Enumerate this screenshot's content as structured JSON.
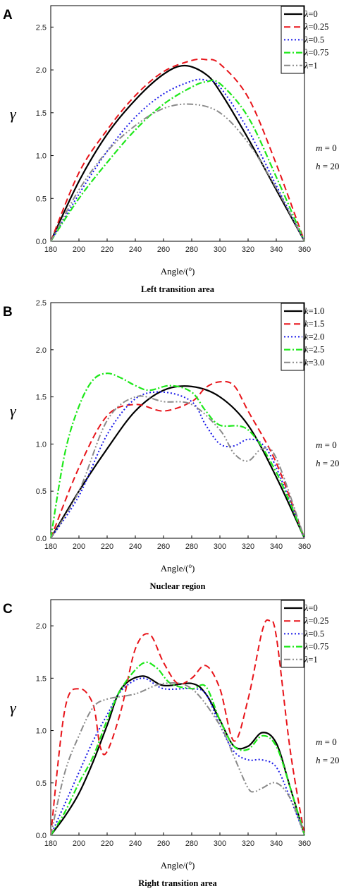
{
  "chart_data": [
    {
      "type": "line",
      "panel_label": "A",
      "caption": "Left transition area",
      "ylabel": "γ",
      "xlabel": "Angle/(o)",
      "xlim": [
        180,
        360
      ],
      "ylim": [
        0,
        2.75
      ],
      "xticks": [
        180,
        200,
        220,
        240,
        260,
        280,
        300,
        320,
        340,
        360
      ],
      "yticks": [
        "0.0",
        "0.5",
        "1.0",
        "1.5",
        "2.0",
        "2.5"
      ],
      "annotations": [
        {
          "var": "m",
          "val": "0"
        },
        {
          "var": "h",
          "val": "20"
        }
      ],
      "legend_prefix": "λ",
      "legend_position": "top-right",
      "series": [
        {
          "name": "=0",
          "color": "#000000",
          "dash": "",
          "width": 2.2,
          "x": [
            180,
            200,
            220,
            240,
            260,
            275,
            290,
            300,
            320,
            340,
            360
          ],
          "y": [
            0,
            0.7,
            1.25,
            1.65,
            1.95,
            2.05,
            1.95,
            1.75,
            1.2,
            0.6,
            0
          ]
        },
        {
          "name": "=0.25",
          "color": "#e8141a",
          "dash": "9,5",
          "width": 2,
          "x": [
            180,
            200,
            220,
            240,
            260,
            280,
            290,
            300,
            320,
            340,
            360
          ],
          "y": [
            0,
            0.8,
            1.3,
            1.7,
            1.98,
            2.11,
            2.12,
            2.07,
            1.68,
            0.9,
            0
          ]
        },
        {
          "name": "=0.5",
          "color": "#1a1ae8",
          "dash": "2,3",
          "width": 2,
          "x": [
            180,
            200,
            220,
            240,
            260,
            280,
            290,
            300,
            320,
            340,
            360
          ],
          "y": [
            0,
            0.55,
            1.05,
            1.45,
            1.72,
            1.87,
            1.88,
            1.8,
            1.3,
            0.65,
            0
          ]
        },
        {
          "name": "=0.75",
          "color": "#1ee81a",
          "dash": "9,3,2,3",
          "width": 2.2,
          "x": [
            180,
            200,
            220,
            240,
            260,
            280,
            290,
            300,
            320,
            340,
            360
          ],
          "y": [
            0,
            0.5,
            0.92,
            1.3,
            1.6,
            1.8,
            1.86,
            1.84,
            1.45,
            0.75,
            0
          ]
        },
        {
          "name": "=1",
          "color": "#8a8a8a",
          "dash": "9,3,2,3,2,3",
          "width": 2,
          "x": [
            180,
            200,
            220,
            240,
            260,
            280,
            300,
            320,
            340,
            360
          ],
          "y": [
            0,
            0.6,
            1.05,
            1.35,
            1.55,
            1.6,
            1.5,
            1.15,
            0.62,
            0
          ]
        }
      ]
    },
    {
      "type": "line",
      "panel_label": "B",
      "caption": "Nuclear region",
      "ylabel": "γ",
      "xlabel": "Angle/(o)",
      "xlim": [
        180,
        360
      ],
      "ylim": [
        0,
        2.5
      ],
      "xticks": [
        180,
        200,
        220,
        240,
        260,
        280,
        300,
        320,
        340,
        360
      ],
      "yticks": [
        "0.0",
        "0.5",
        "1.0",
        "1.5",
        "2.0",
        "2.5"
      ],
      "annotations": [
        {
          "var": "m",
          "val": "0"
        },
        {
          "var": "h",
          "val": "20"
        }
      ],
      "legend_prefix": "k",
      "legend_position": "top-right",
      "series": [
        {
          "name": "=1.0",
          "color": "#000000",
          "dash": "",
          "width": 2.2,
          "x": [
            180,
            200,
            220,
            240,
            260,
            280,
            300,
            320,
            340,
            360
          ],
          "y": [
            0,
            0.5,
            0.95,
            1.35,
            1.57,
            1.61,
            1.5,
            1.2,
            0.65,
            0
          ]
        },
        {
          "name": "=1.5",
          "color": "#e8141a",
          "dash": "9,5",
          "width": 2,
          "x": [
            180,
            200,
            220,
            240,
            260,
            280,
            290,
            300,
            310,
            320,
            340,
            360
          ],
          "y": [
            0,
            0.75,
            1.3,
            1.42,
            1.35,
            1.45,
            1.6,
            1.66,
            1.62,
            1.35,
            0.8,
            0
          ]
        },
        {
          "name": "=2.0",
          "color": "#1a1ae8",
          "dash": "2,3",
          "width": 2,
          "x": [
            180,
            200,
            220,
            240,
            260,
            280,
            290,
            300,
            310,
            320,
            330,
            340,
            360
          ],
          "y": [
            0,
            0.45,
            1.1,
            1.48,
            1.55,
            1.45,
            1.2,
            1.0,
            0.98,
            1.05,
            1.0,
            0.75,
            0
          ]
        },
        {
          "name": "=2.5",
          "color": "#1ee81a",
          "dash": "9,3,2,3",
          "width": 2.2,
          "x": [
            180,
            190,
            200,
            210,
            220,
            230,
            240,
            250,
            265,
            280,
            290,
            300,
            320,
            340,
            360
          ],
          "y": [
            0,
            0.9,
            1.4,
            1.68,
            1.75,
            1.7,
            1.62,
            1.57,
            1.62,
            1.55,
            1.35,
            1.2,
            1.15,
            0.7,
            0
          ]
        },
        {
          "name": "=3.0",
          "color": "#8a8a8a",
          "dash": "9,3,2,3,2,3",
          "width": 2,
          "x": [
            180,
            200,
            220,
            240,
            260,
            280,
            300,
            310,
            320,
            330,
            340,
            360
          ],
          "y": [
            0,
            0.5,
            1.25,
            1.5,
            1.45,
            1.42,
            1.15,
            0.9,
            0.82,
            0.95,
            0.85,
            0
          ]
        }
      ]
    },
    {
      "type": "line",
      "panel_label": "C",
      "caption": "Right transition area",
      "ylabel": "γ",
      "xlabel": "Angle/(o)",
      "xlim": [
        180,
        360
      ],
      "ylim": [
        0,
        2.25
      ],
      "xticks": [
        180,
        200,
        220,
        240,
        260,
        280,
        300,
        320,
        340,
        360
      ],
      "yticks": [
        "0.0",
        "0.5",
        "1.0",
        "1.5",
        "2.0"
      ],
      "annotations": [
        {
          "var": "m",
          "val": "0"
        },
        {
          "var": "h",
          "val": "20"
        }
      ],
      "legend_prefix": "λ",
      "legend_position": "top-right",
      "series": [
        {
          "name": "=0",
          "color": "#000000",
          "dash": "",
          "width": 2.2,
          "x": [
            180,
            190,
            200,
            210,
            220,
            230,
            245,
            260,
            280,
            290,
            300,
            310,
            320,
            330,
            340,
            350,
            360
          ],
          "y": [
            0,
            0.18,
            0.4,
            0.7,
            1.05,
            1.4,
            1.52,
            1.43,
            1.45,
            1.35,
            1.1,
            0.85,
            0.85,
            0.98,
            0.88,
            0.45,
            0
          ]
        },
        {
          "name": "=0.25",
          "color": "#e8141a",
          "dash": "9,5",
          "width": 2,
          "x": [
            180,
            190,
            200,
            210,
            215,
            220,
            230,
            240,
            250,
            260,
            270,
            280,
            290,
            300,
            310,
            320,
            330,
            335,
            340,
            350,
            360
          ],
          "y": [
            0,
            1.2,
            1.4,
            1.25,
            0.85,
            0.8,
            1.2,
            1.78,
            1.92,
            1.65,
            1.45,
            1.5,
            1.62,
            1.4,
            0.9,
            1.3,
            1.95,
            2.05,
            1.9,
            0.8,
            0
          ]
        },
        {
          "name": "=0.5",
          "color": "#1a1ae8",
          "dash": "2,3",
          "width": 2,
          "x": [
            180,
            190,
            200,
            210,
            220,
            230,
            245,
            260,
            280,
            290,
            300,
            310,
            320,
            330,
            340,
            350,
            360
          ],
          "y": [
            0,
            0.3,
            0.6,
            0.9,
            1.15,
            1.38,
            1.5,
            1.4,
            1.4,
            1.35,
            1.05,
            0.8,
            0.72,
            0.72,
            0.65,
            0.35,
            0
          ]
        },
        {
          "name": "=0.75",
          "color": "#1ee81a",
          "dash": "9,3,2,3",
          "width": 2.2,
          "x": [
            180,
            190,
            200,
            210,
            220,
            230,
            245,
            255,
            265,
            280,
            290,
            300,
            310,
            320,
            330,
            340,
            350,
            360
          ],
          "y": [
            0,
            0.22,
            0.5,
            0.75,
            1.1,
            1.4,
            1.64,
            1.6,
            1.45,
            1.4,
            1.42,
            1.1,
            0.85,
            0.82,
            0.95,
            0.85,
            0.45,
            0
          ]
        },
        {
          "name": "=1",
          "color": "#8a8a8a",
          "dash": "9,3,2,3,2,3",
          "width": 2,
          "x": [
            180,
            190,
            200,
            210,
            220,
            240,
            260,
            280,
            300,
            310,
            320,
            325,
            330,
            340,
            350,
            360
          ],
          "y": [
            0,
            0.6,
            0.95,
            1.22,
            1.3,
            1.35,
            1.45,
            1.4,
            1.05,
            0.75,
            0.45,
            0.42,
            0.45,
            0.5,
            0.35,
            0
          ]
        }
      ]
    }
  ]
}
